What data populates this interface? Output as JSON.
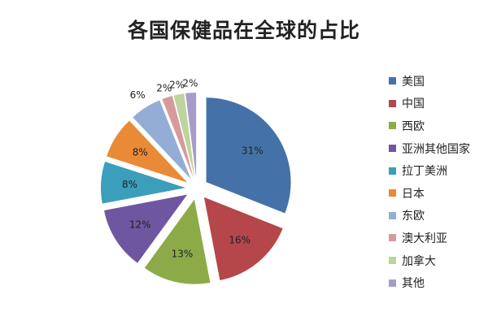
{
  "chart_data": {
    "type": "pie",
    "title": "各国保健品在全球的占比",
    "exploded": true,
    "start_angle": "12 o'clock, clockwise",
    "legend_position": "right",
    "categories": [
      "美国",
      "中国",
      "西欧",
      "亚洲其他国家",
      "拉丁美洲",
      "日本",
      "东欧",
      "澳大利亚",
      "加拿大",
      "其他"
    ],
    "values": [
      31,
      16,
      13,
      12,
      8,
      8,
      6,
      2,
      2,
      2
    ],
    "data_labels": [
      "31%",
      "16%",
      "13%",
      "12%",
      "8%",
      "8%",
      "6%",
      "2%",
      "2%",
      "2%"
    ],
    "colors": [
      "#4472a8",
      "#b5464a",
      "#8cab48",
      "#6f56a0",
      "#3b9ebb",
      "#e98a37",
      "#93add5",
      "#d79a9c",
      "#bcd49e",
      "#a79cc9"
    ]
  }
}
